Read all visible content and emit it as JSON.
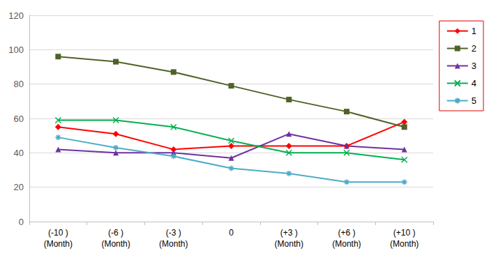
{
  "chart_data": {
    "type": "line",
    "categories": [
      "(-10 )\n(Month)",
      "(-6 )\n(Month)",
      "(-3 )\n(Month)",
      "0",
      "(+3 )\n(Month)",
      "(+6 )\n(Month)",
      "(+10 )\n(Month)"
    ],
    "series": [
      {
        "name": "1",
        "color": "#ff0000",
        "marker": "diamond",
        "values": [
          55,
          51,
          42,
          44,
          44,
          44,
          58
        ]
      },
      {
        "name": "2",
        "color": "#4f6228",
        "marker": "square",
        "values": [
          96,
          93,
          87,
          79,
          71,
          64,
          55
        ]
      },
      {
        "name": "3",
        "color": "#7030a0",
        "marker": "triangle",
        "values": [
          42,
          40,
          40,
          37,
          51,
          44,
          42
        ]
      },
      {
        "name": "4",
        "color": "#00b050",
        "marker": "x",
        "values": [
          59,
          59,
          55,
          47,
          40,
          40,
          36
        ]
      },
      {
        "name": "5",
        "color": "#4bacc6",
        "marker": "star",
        "values": [
          49,
          43,
          38,
          31,
          28,
          23,
          23
        ]
      }
    ],
    "ylim": [
      0,
      120
    ],
    "yticks": [
      0,
      20,
      40,
      60,
      80,
      100,
      120
    ],
    "grid": true,
    "legend": "top-right"
  }
}
